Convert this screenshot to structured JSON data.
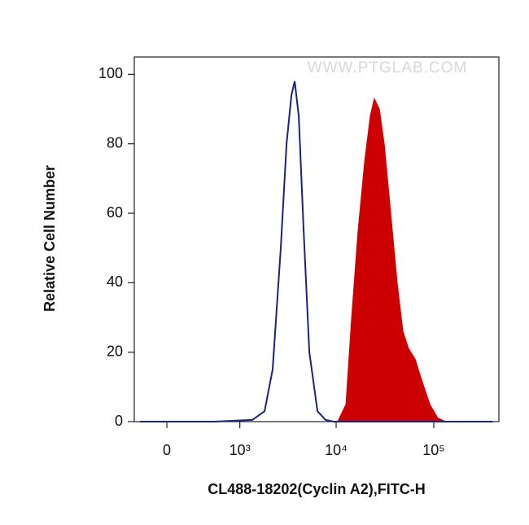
{
  "chart_data": {
    "type": "line",
    "watermark": "WWW.PTGLAB.COM",
    "x_label": "CL488-18202(Cyclin A2),FITC-H",
    "y_label": "Relative Cell Number",
    "xscale": "biexponential",
    "xlim": [
      -313,
      464000
    ],
    "ylim": [
      0,
      105
    ],
    "xticks": [
      0,
      {
        "value": 1000,
        "label": "10³"
      },
      {
        "value": 10000,
        "label": "10⁴"
      },
      {
        "value": 100000,
        "label": "10⁵"
      }
    ],
    "yticks": [
      0,
      20,
      40,
      60,
      80,
      100
    ],
    "series": [
      {
        "color": "#cc0000",
        "filled": true,
        "x": [
          10390,
          12600,
          14430,
          16800,
          19600,
          22400,
          24600,
          27700,
          31100,
          36200,
          42200,
          48300,
          55300,
          64400,
          75100,
          91000,
          110000,
          133000
        ],
        "values": [
          0,
          5,
          30,
          55,
          75,
          88,
          93,
          90,
          80,
          60,
          40,
          26,
          21,
          18,
          12,
          5,
          1,
          0
        ]
      },
      {
        "color": "#1a237e",
        "filled": false,
        "x": [
          -250,
          0,
          500,
          1363,
          1832,
          2224,
          2700,
          3100,
          3480,
          3760,
          4140,
          4640,
          5310,
          6440,
          7810,
          9450,
          50000,
          400000
        ],
        "values": [
          0,
          0,
          0,
          0.5,
          3,
          15,
          50,
          80,
          94,
          98,
          88,
          55,
          20,
          3,
          0.5,
          0,
          0,
          0
        ]
      }
    ]
  }
}
